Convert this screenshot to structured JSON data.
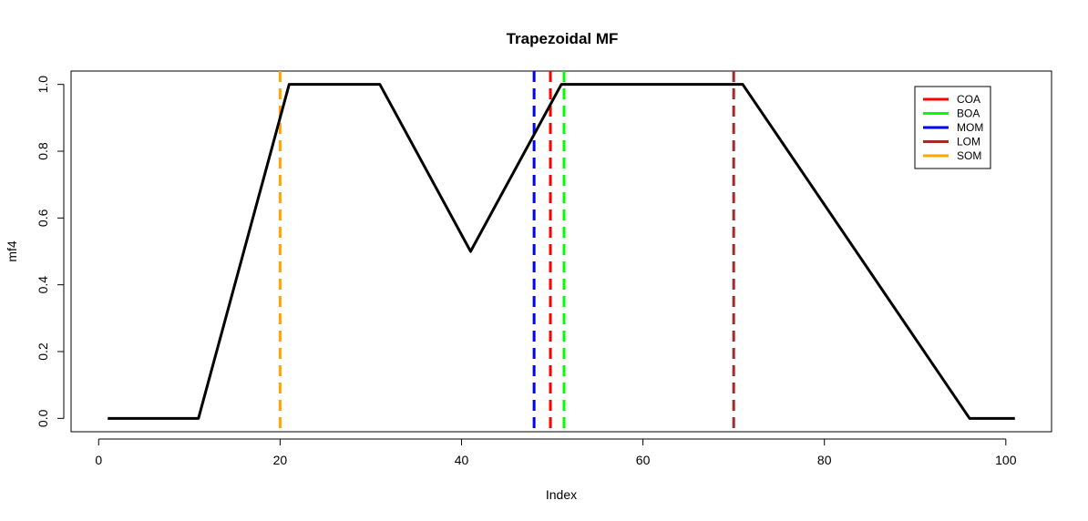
{
  "chart_data": {
    "type": "line",
    "title": "Trapezoidal MF",
    "xlabel": "Index",
    "ylabel": "mf4",
    "xlim": [
      -3.04,
      105.04
    ],
    "ylim": [
      -0.04,
      1.04
    ],
    "xticks": [
      0,
      20,
      40,
      60,
      80,
      100
    ],
    "yticks": [
      0.0,
      0.2,
      0.4,
      0.6,
      0.8,
      1.0
    ],
    "xtick_labels": [
      "0",
      "20",
      "40",
      "60",
      "80",
      "100"
    ],
    "ytick_labels": [
      "0.0",
      "0.2",
      "0.4",
      "0.6",
      "0.8",
      "1.0"
    ],
    "grid": false,
    "legend_position": "top-right",
    "series": [
      {
        "color": "#000000",
        "x": [
          1,
          11,
          21,
          31,
          41,
          51,
          61,
          71,
          76,
          96,
          101
        ],
        "y": [
          0,
          0,
          1,
          1,
          0.5,
          1,
          1,
          1,
          0.8,
          0,
          0
        ]
      }
    ],
    "vlines": [
      {
        "name": "COA",
        "x": 49.8,
        "color": "#ff0000"
      },
      {
        "name": "BOA",
        "x": 51.3,
        "color": "#00ff00"
      },
      {
        "name": "MOM",
        "x": 48.0,
        "color": "#0000ff"
      },
      {
        "name": "LOM",
        "x": 70.0,
        "color": "#a52a2a"
      },
      {
        "name": "SOM",
        "x": 20.0,
        "color": "#ffa500"
      }
    ]
  }
}
